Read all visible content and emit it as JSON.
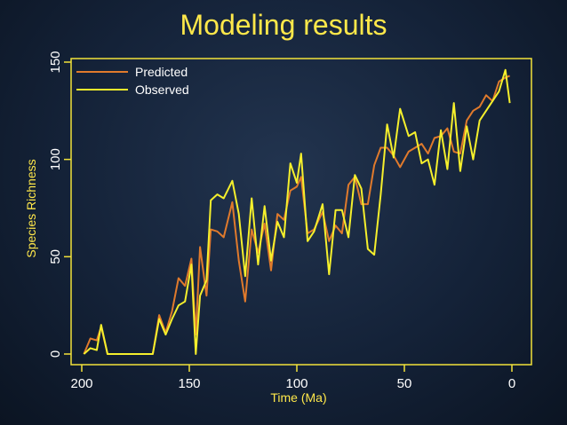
{
  "slide": {
    "title": "Modeling results"
  },
  "colors": {
    "axis": "#f2e23a",
    "predicted": "#e07a2c",
    "observed": "#f5ef2c",
    "title": "#ffe84a"
  },
  "chart_data": {
    "type": "line",
    "title": "",
    "xlabel": "Time (Ma)",
    "ylabel": "Species Richness",
    "xlim": [
      200,
      0
    ],
    "ylim": [
      0,
      150
    ],
    "x_ticks": [
      200,
      150,
      100,
      50,
      0
    ],
    "y_ticks": [
      0,
      50,
      100,
      150
    ],
    "grid": false,
    "legend_position": "top-left",
    "x": [
      199,
      196,
      193,
      191,
      188,
      185,
      182,
      178,
      174,
      170,
      167,
      164,
      161,
      158,
      155,
      152,
      149,
      147,
      145,
      142,
      140,
      137,
      134,
      130,
      127,
      124,
      121,
      118,
      115,
      112,
      109,
      106,
      103,
      100,
      98,
      95,
      92,
      88,
      85,
      82,
      79,
      76,
      73,
      70,
      67,
      64,
      61,
      58,
      55,
      52,
      48,
      45,
      42,
      39,
      36,
      33,
      30,
      27,
      24,
      21,
      18,
      15,
      12,
      9,
      6,
      3,
      1
    ],
    "series": [
      {
        "name": "Predicted",
        "values": [
          0,
          8,
          7,
          14,
          0,
          0,
          0,
          0,
          0,
          0,
          0,
          20,
          11,
          22,
          39,
          35,
          49,
          10,
          55,
          30,
          64,
          63,
          60,
          78,
          48,
          27,
          64,
          52,
          67,
          43,
          72,
          69,
          84,
          86,
          91,
          62,
          64,
          73,
          58,
          66,
          62,
          87,
          91,
          77,
          77,
          97,
          106,
          106,
          102,
          96,
          104,
          106,
          108,
          103,
          111,
          112,
          116,
          104,
          103,
          120,
          125,
          127,
          133,
          130,
          140,
          142,
          143
        ]
      },
      {
        "name": "Observed",
        "values": [
          0,
          3,
          2,
          15,
          0,
          0,
          0,
          0,
          0,
          0,
          0,
          18,
          10,
          18,
          25,
          27,
          46,
          0,
          30,
          38,
          79,
          82,
          80,
          89,
          72,
          40,
          80,
          46,
          76,
          48,
          68,
          60,
          98,
          88,
          103,
          58,
          63,
          77,
          41,
          74,
          74,
          60,
          92,
          85,
          54,
          51,
          82,
          118,
          101,
          126,
          112,
          114,
          98,
          100,
          87,
          115,
          95,
          129,
          94,
          117,
          100,
          120,
          125,
          130,
          135,
          146,
          129
        ]
      }
    ]
  }
}
